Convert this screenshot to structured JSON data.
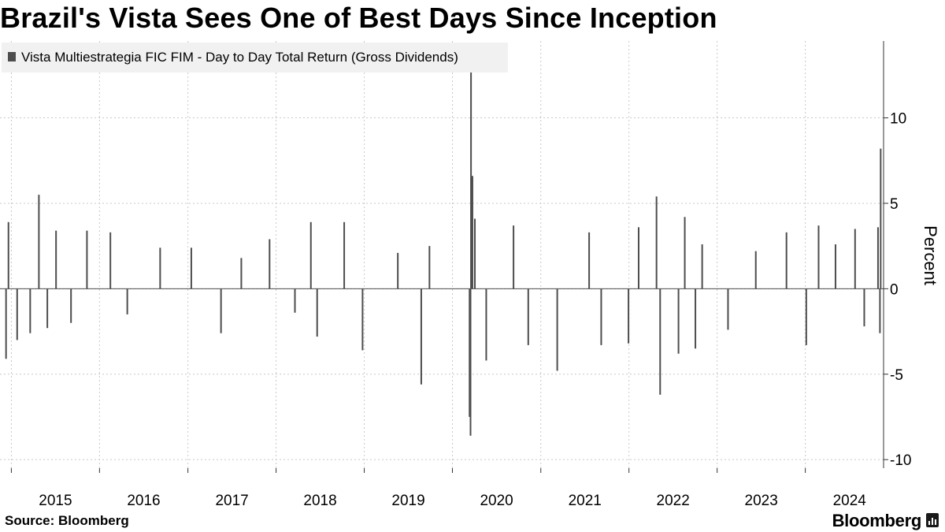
{
  "header": {
    "title": "Brazil's Vista Sees One of Best Days Since Inception"
  },
  "footer": {
    "source": "Source: Bloomberg",
    "brand": "Bloomberg",
    "brand_icon": "bloomberg-terminal-icon"
  },
  "colors": {
    "series": "#4d4d4d",
    "grid": "#c8c8c8",
    "legend_bg": "#f1f1f1"
  },
  "chart_data": {
    "type": "bar",
    "title": "Brazil's Vista Sees One of Best Days Since Inception",
    "legend": [
      "Vista Multiestrategia FIC FIM - Day to Day Total Return (Gross Dividends)"
    ],
    "legend_position": "top-left",
    "ylabel": "Percent",
    "xlabel": "",
    "ylim": [
      -10.5,
      14.5
    ],
    "yticks": [
      10,
      5,
      0,
      -5,
      -10
    ],
    "xlim": [
      "2014-11-15",
      "2024-11-20"
    ],
    "xtick_labels": [
      "2015",
      "2016",
      "2017",
      "2018",
      "2019",
      "2020",
      "2021",
      "2022",
      "2023",
      "2024"
    ],
    "grid": true,
    "y_axis_side": "right",
    "series": [
      {
        "name": "Vista Multiestrategia FIC FIM - Day to Day Total Return (Gross Dividends)",
        "sampled_points": [
          [
            "2014-12-10",
            -4.1
          ],
          [
            "2014-12-20",
            3.9
          ],
          [
            "2015-01-25",
            -3.0
          ],
          [
            "2015-03-20",
            -2.6
          ],
          [
            "2015-04-25",
            5.5
          ],
          [
            "2015-05-30",
            -2.3
          ],
          [
            "2015-07-05",
            3.4
          ],
          [
            "2015-09-05",
            -2.0
          ],
          [
            "2015-11-10",
            3.4
          ],
          [
            "2016-02-15",
            3.3
          ],
          [
            "2016-04-25",
            -1.5
          ],
          [
            "2016-09-08",
            2.4
          ],
          [
            "2017-01-15",
            2.4
          ],
          [
            "2017-05-18",
            -2.6
          ],
          [
            "2017-08-10",
            1.8
          ],
          [
            "2017-12-05",
            2.9
          ],
          [
            "2018-03-20",
            -1.4
          ],
          [
            "2018-05-25",
            3.9
          ],
          [
            "2018-06-20",
            -2.8
          ],
          [
            "2018-10-10",
            3.9
          ],
          [
            "2018-12-25",
            -3.6
          ],
          [
            "2019-05-20",
            2.1
          ],
          [
            "2019-08-25",
            -5.6
          ],
          [
            "2019-09-28",
            2.5
          ],
          [
            "2020-03-12",
            -7.5
          ],
          [
            "2020-03-16",
            -8.6
          ],
          [
            "2020-03-18",
            12.8
          ],
          [
            "2020-03-24",
            6.6
          ],
          [
            "2020-04-03",
            4.1
          ],
          [
            "2020-05-20",
            -4.2
          ],
          [
            "2020-09-10",
            3.7
          ],
          [
            "2020-11-10",
            -3.3
          ],
          [
            "2021-03-10",
            -4.8
          ],
          [
            "2021-07-20",
            3.3
          ],
          [
            "2021-09-08",
            -3.3
          ],
          [
            "2021-12-30",
            -3.2
          ],
          [
            "2022-02-10",
            3.6
          ],
          [
            "2022-04-25",
            5.4
          ],
          [
            "2022-05-10",
            -6.2
          ],
          [
            "2022-07-25",
            -3.8
          ],
          [
            "2022-08-20",
            4.2
          ],
          [
            "2022-10-03",
            -3.5
          ],
          [
            "2022-10-31",
            2.6
          ],
          [
            "2023-02-15",
            -2.4
          ],
          [
            "2023-06-10",
            2.2
          ],
          [
            "2023-10-15",
            3.3
          ],
          [
            "2024-01-05",
            -3.3
          ],
          [
            "2024-02-25",
            3.7
          ],
          [
            "2024-05-05",
            2.6
          ],
          [
            "2024-07-25",
            3.5
          ],
          [
            "2024-09-01",
            -2.2
          ],
          [
            "2024-10-28",
            3.6
          ],
          [
            "2024-11-05",
            -2.6
          ],
          [
            "2024-11-08",
            8.2
          ]
        ]
      }
    ]
  }
}
